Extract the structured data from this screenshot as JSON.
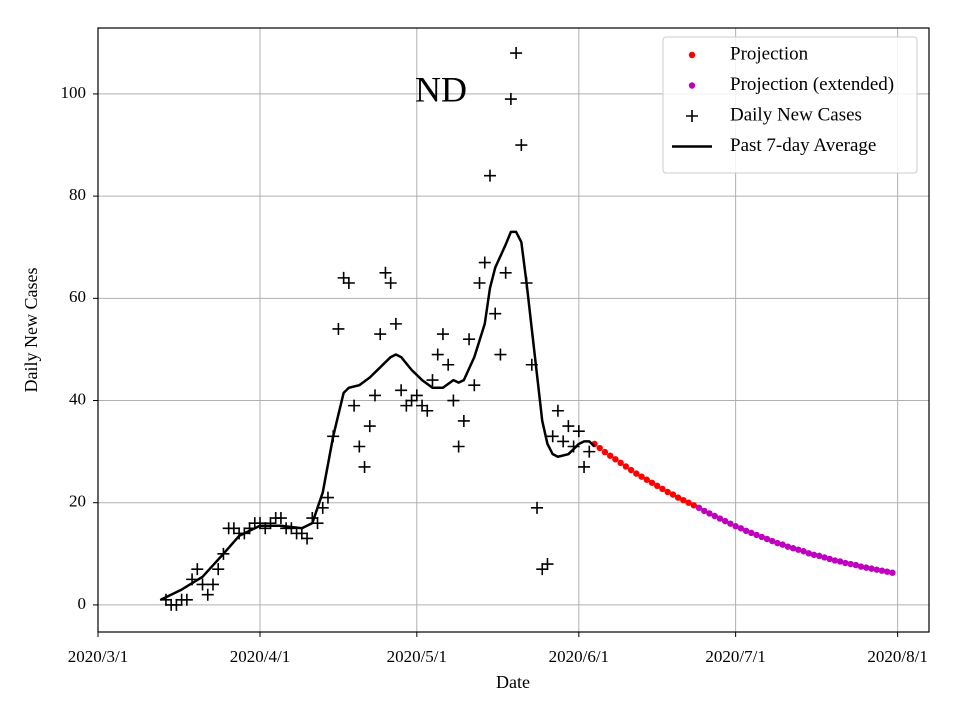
{
  "chart_data": {
    "type": "line",
    "title": "ND",
    "x_label": "Date",
    "y_label": "Daily New Cases",
    "xlim": [
      "2020/3/1",
      "2020/8/7"
    ],
    "xticks": [
      "2020/3/1",
      "2020/4/1",
      "2020/5/1",
      "2020/6/1",
      "2020/7/1",
      "2020/8/1"
    ],
    "ylim": [
      -5.3,
      112.9
    ],
    "yticks": [
      0,
      20,
      40,
      60,
      80,
      100
    ],
    "grid": true,
    "legend": "upper right",
    "series": [
      {
        "name": "Projection",
        "color": "#ff0000",
        "marker": "dot",
        "x": [
          "2020/6/4",
          "2020/6/5",
          "2020/6/6",
          "2020/6/7",
          "2020/6/8",
          "2020/6/9",
          "2020/6/10",
          "2020/6/11",
          "2020/6/12",
          "2020/6/13",
          "2020/6/14",
          "2020/6/15",
          "2020/6/16",
          "2020/6/17",
          "2020/6/18",
          "2020/6/19",
          "2020/6/20",
          "2020/6/21",
          "2020/6/22",
          "2020/6/23"
        ],
        "values": [
          31.5,
          30.7,
          29.9,
          29.2,
          28.5,
          27.8,
          27.1,
          26.4,
          25.7,
          25.1,
          24.5,
          23.9,
          23.3,
          22.7,
          22.1,
          21.6,
          21.0,
          20.5,
          20.0,
          19.5
        ]
      },
      {
        "name": "Projection (extended)",
        "color": "#bf00bf",
        "marker": "dot",
        "x": [
          "2020/6/24",
          "2020/6/25",
          "2020/6/26",
          "2020/6/27",
          "2020/6/28",
          "2020/6/29",
          "2020/6/30",
          "2020/7/1",
          "2020/7/2",
          "2020/7/3",
          "2020/7/4",
          "2020/7/5",
          "2020/7/6",
          "2020/7/7",
          "2020/7/8",
          "2020/7/9",
          "2020/7/10",
          "2020/7/11",
          "2020/7/12",
          "2020/7/13",
          "2020/7/14",
          "2020/7/15",
          "2020/7/16",
          "2020/7/17",
          "2020/7/18",
          "2020/7/19",
          "2020/7/20",
          "2020/7/21",
          "2020/7/22",
          "2020/7/23",
          "2020/7/24",
          "2020/7/25",
          "2020/7/26",
          "2020/7/27",
          "2020/7/28",
          "2020/7/29",
          "2020/7/30",
          "2020/7/31"
        ],
        "values": [
          19.0,
          18.4,
          17.9,
          17.4,
          16.9,
          16.4,
          15.9,
          15.4,
          15.0,
          14.5,
          14.1,
          13.7,
          13.3,
          12.9,
          12.5,
          12.1,
          11.8,
          11.4,
          11.1,
          10.8,
          10.5,
          10.1,
          9.8,
          9.6,
          9.3,
          9.0,
          8.7,
          8.5,
          8.2,
          8.0,
          7.8,
          7.5,
          7.3,
          7.1,
          6.9,
          6.7,
          6.5,
          6.3
        ]
      },
      {
        "name": "Daily New Cases",
        "color": "#000000",
        "marker": "plus",
        "x": [
          "2020/3/14",
          "2020/3/15",
          "2020/3/16",
          "2020/3/17",
          "2020/3/18",
          "2020/3/19",
          "2020/3/20",
          "2020/3/21",
          "2020/3/22",
          "2020/3/23",
          "2020/3/24",
          "2020/3/25",
          "2020/3/26",
          "2020/3/27",
          "2020/3/28",
          "2020/3/29",
          "2020/3/30",
          "2020/3/31",
          "2020/4/1",
          "2020/4/2",
          "2020/4/3",
          "2020/4/4",
          "2020/4/5",
          "2020/4/6",
          "2020/4/7",
          "2020/4/8",
          "2020/4/9",
          "2020/4/10",
          "2020/4/11",
          "2020/4/12",
          "2020/4/13",
          "2020/4/14",
          "2020/4/15",
          "2020/4/16",
          "2020/4/17",
          "2020/4/18",
          "2020/4/19",
          "2020/4/20",
          "2020/4/21",
          "2020/4/22",
          "2020/4/23",
          "2020/4/24",
          "2020/4/25",
          "2020/4/26",
          "2020/4/27",
          "2020/4/28",
          "2020/4/29",
          "2020/4/30",
          "2020/5/1",
          "2020/5/2",
          "2020/5/3",
          "2020/5/4",
          "2020/5/5",
          "2020/5/6",
          "2020/5/7",
          "2020/5/8",
          "2020/5/9",
          "2020/5/10",
          "2020/5/11",
          "2020/5/12",
          "2020/5/13",
          "2020/5/14",
          "2020/5/15",
          "2020/5/16",
          "2020/5/17",
          "2020/5/18",
          "2020/5/19",
          "2020/5/20",
          "2020/5/21",
          "2020/5/22",
          "2020/5/23",
          "2020/5/24",
          "2020/5/25",
          "2020/5/26",
          "2020/5/27",
          "2020/5/28",
          "2020/5/29",
          "2020/5/30",
          "2020/5/31",
          "2020/6/1",
          "2020/6/2",
          "2020/6/3"
        ],
        "values": [
          1,
          0,
          0,
          1,
          1,
          5,
          7,
          4,
          2,
          4,
          7,
          10,
          15,
          15,
          14,
          14,
          15,
          16,
          16,
          15,
          16,
          17,
          17,
          15,
          15,
          14,
          14,
          13,
          17,
          16,
          19,
          21,
          33,
          54,
          64,
          63,
          39,
          31,
          27,
          35,
          41,
          53,
          65,
          63,
          55,
          42,
          39,
          40,
          41,
          39,
          38,
          44,
          49,
          53,
          47,
          40,
          31,
          36,
          52,
          43,
          63,
          67,
          84,
          57,
          49,
          65,
          99,
          108,
          90,
          63,
          47,
          19,
          7,
          8,
          33,
          38,
          32,
          35,
          31,
          34,
          27,
          30
        ]
      },
      {
        "name": "Past 7-day Average",
        "color": "#000000",
        "marker": "line",
        "x": [
          "2020/3/13",
          "2020/3/17",
          "2020/3/21",
          "2020/3/25",
          "2020/3/28",
          "2020/4/1",
          "2020/4/5",
          "2020/4/9",
          "2020/4/11",
          "2020/4/13",
          "2020/4/15",
          "2020/4/17",
          "2020/4/18",
          "2020/4/20",
          "2020/4/22",
          "2020/4/24",
          "2020/4/26",
          "2020/4/27",
          "2020/4/28",
          "2020/4/30",
          "2020/5/2",
          "2020/5/4",
          "2020/5/6",
          "2020/5/8",
          "2020/5/9",
          "2020/5/10",
          "2020/5/12",
          "2020/5/14",
          "2020/5/15",
          "2020/5/16",
          "2020/5/18",
          "2020/5/19",
          "2020/5/20",
          "2020/5/21",
          "2020/5/22",
          "2020/5/23",
          "2020/5/24",
          "2020/5/25",
          "2020/5/26",
          "2020/5/27",
          "2020/5/28",
          "2020/5/30",
          "2020/5/31",
          "2020/6/1",
          "2020/6/2",
          "2020/6/3",
          "2020/6/4"
        ],
        "values": [
          1,
          3,
          5.5,
          10,
          13.5,
          15.5,
          15.5,
          15,
          16,
          22,
          33,
          41.5,
          42.5,
          43,
          44.5,
          46.5,
          48.5,
          49,
          48.5,
          46,
          44,
          42.5,
          42.5,
          44,
          43.5,
          44,
          48.5,
          55,
          62,
          66,
          70.5,
          73,
          73,
          71,
          63,
          54,
          45,
          36,
          31.5,
          29.5,
          29,
          29.5,
          30.5,
          31.5,
          32,
          32,
          31
        ]
      }
    ]
  }
}
